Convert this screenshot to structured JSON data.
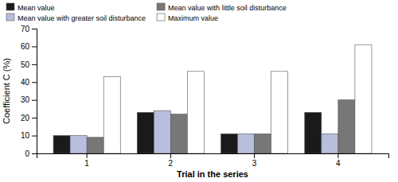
{
  "chart_data": {
    "type": "bar",
    "xlabel": "Trial in the series",
    "ylabel": "Coefficient C (%)",
    "categories": [
      "1",
      "2",
      "3",
      "4"
    ],
    "series": [
      {
        "name": "Mean value",
        "color": "#1a1a1a",
        "values": [
          10,
          23,
          11,
          23
        ]
      },
      {
        "name": "Mean value with greater soil disturbance",
        "color": "#b8bedd",
        "values": [
          10,
          24,
          11,
          11
        ]
      },
      {
        "name": "Mean value with little soil disturbance",
        "color": "#777777",
        "values": [
          9,
          22,
          11,
          30
        ]
      },
      {
        "name": "Maximum value",
        "color": "#ffffff",
        "values": [
          43,
          46,
          46,
          61
        ]
      }
    ],
    "ylim": [
      0,
      70
    ],
    "yticks": [
      0,
      10,
      20,
      30,
      40,
      50,
      60,
      70
    ],
    "grid": false,
    "legend": "top"
  }
}
